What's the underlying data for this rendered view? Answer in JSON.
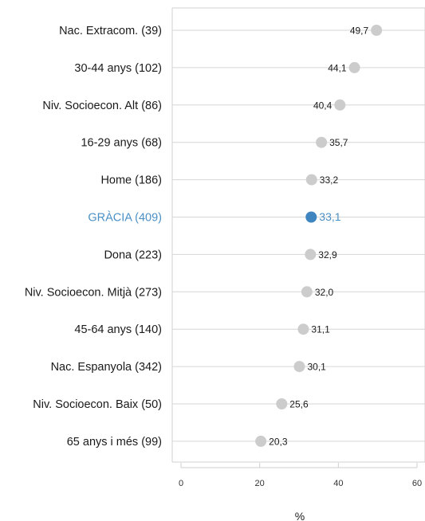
{
  "chart_data": {
    "type": "scatter",
    "categories": [
      "Nac. Extracom. (39)",
      "30-44 anys (102)",
      "Niv. Socioecon. Alt (86)",
      "16-29 anys (68)",
      "Home (186)",
      "GRÀCIA (409)",
      "Dona (223)",
      "Niv. Socioecon. Mitjà (273)",
      "45-64 anys (140)",
      "Nac. Espanyola (342)",
      "Niv. Socioecon. Baix (50)",
      "65 anys i més (99)"
    ],
    "values": [
      49.7,
      44.1,
      40.4,
      35.7,
      33.2,
      33.1,
      32.9,
      32.0,
      31.1,
      30.1,
      25.6,
      20.3
    ],
    "value_labels": [
      "49,7",
      "44,1",
      "40,4",
      "35,7",
      "33,2",
      "33,1",
      "32,9",
      "32,0",
      "31,1",
      "30,1",
      "25,6",
      "20,3"
    ],
    "highlight_category": "GRÀCIA (409)",
    "xlabel": "%",
    "xlim": [
      0,
      60
    ],
    "xticks": [
      "0",
      "20",
      "40",
      "60"
    ],
    "colors": {
      "point": "#cccccc",
      "highlight": "#3f86c0",
      "highlight_text": "#4a90c4",
      "guide": "#d6d6d6",
      "frame": "#d0d0d0"
    }
  }
}
